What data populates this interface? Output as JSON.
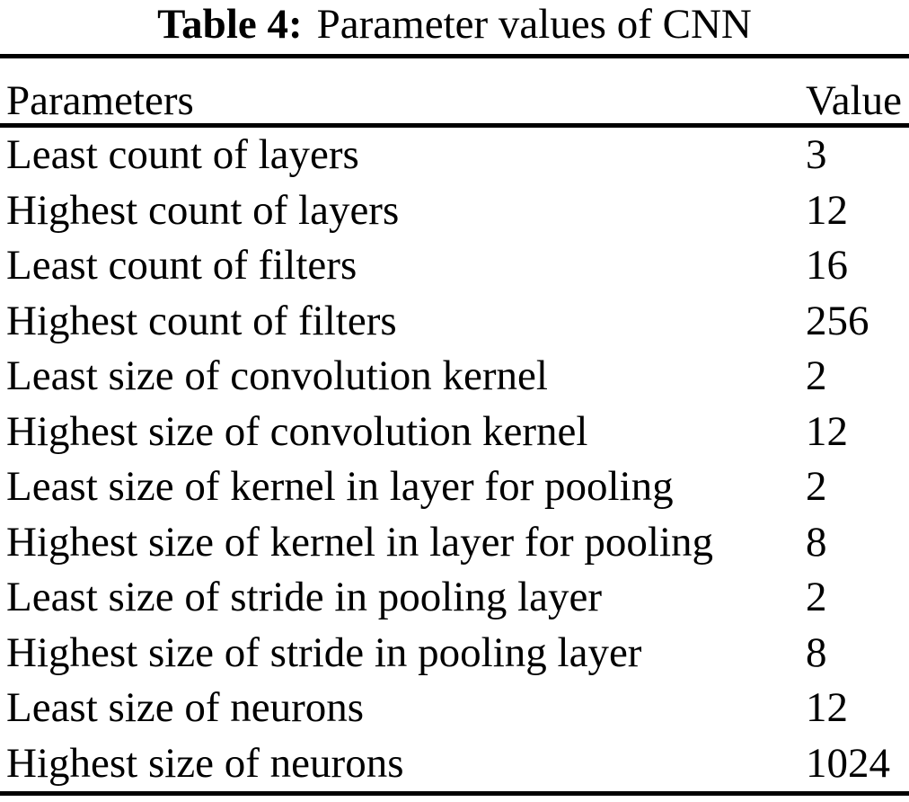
{
  "title": {
    "label": "Table 4:",
    "text": "Parameter values of CNN"
  },
  "table": {
    "columns": [
      "Parameters",
      "Value"
    ],
    "rows": [
      {
        "parameter": "Least count of layers",
        "value": "3"
      },
      {
        "parameter": "Highest count of layers",
        "value": "12"
      },
      {
        "parameter": "Least count of filters",
        "value": "16"
      },
      {
        "parameter": "Highest count of filters",
        "value": "256"
      },
      {
        "parameter": "Least size of convolution kernel",
        "value": "2"
      },
      {
        "parameter": "Highest size of convolution kernel",
        "value": "12"
      },
      {
        "parameter": "Least size of kernel in layer for pooling",
        "value": "2"
      },
      {
        "parameter": "Highest size of kernel in layer for pooling",
        "value": "8"
      },
      {
        "parameter": "Least size of stride in pooling layer",
        "value": "2"
      },
      {
        "parameter": "Highest size of stride in pooling layer",
        "value": "8"
      },
      {
        "parameter": "Least size of neurons",
        "value": "12"
      },
      {
        "parameter": "Highest size of neurons",
        "value": "1024"
      }
    ]
  },
  "colors": {
    "background": "#ffffff",
    "text": "#000000",
    "rule": "#000000"
  }
}
